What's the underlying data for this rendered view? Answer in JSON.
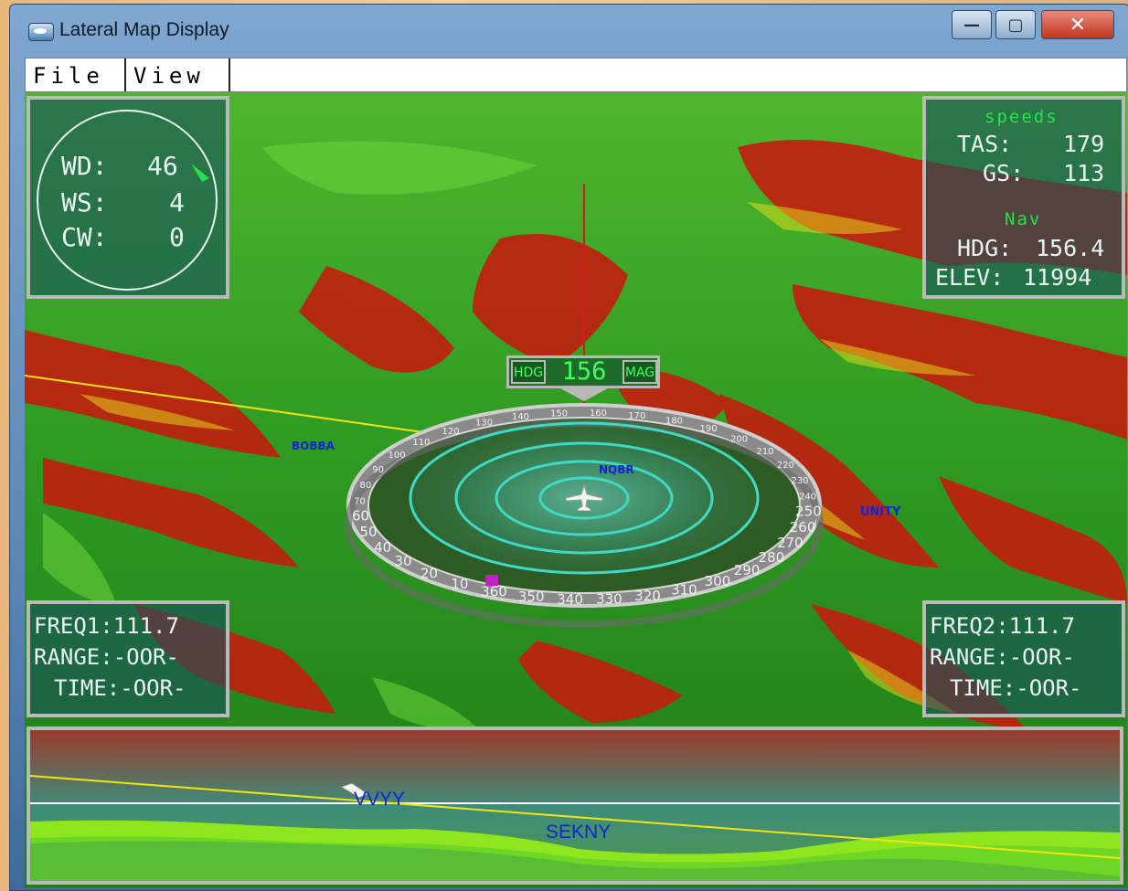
{
  "window": {
    "title": "Lateral Map Display",
    "controls": {
      "minimize": "—",
      "maximize": "▢",
      "close": "✕"
    }
  },
  "menu": {
    "file": "File",
    "view": "View"
  },
  "wind_panel": {
    "wd_label": "WD:",
    "wd_value": "46",
    "ws_label": "WS:",
    "ws_value": "4",
    "cw_label": "CW:",
    "cw_value": "0"
  },
  "speeds_panel": {
    "header": "speeds",
    "tas_label": "TAS:",
    "tas_value": "179",
    "gs_label": "GS:",
    "gs_value": "113",
    "nav_header": "Nav",
    "hdg_label": "HDG:",
    "hdg_value": "156.4",
    "elev_label": "ELEV:",
    "elev_value": "11994"
  },
  "heading_box": {
    "left": "HDG",
    "value": "156",
    "right": "MAG"
  },
  "compass": {
    "ticks": [
      "360",
      "10",
      "20",
      "30",
      "40",
      "50",
      "60",
      "70",
      "80",
      "90",
      "100",
      "110",
      "120",
      "130",
      "140",
      "150",
      "160",
      "170",
      "180",
      "190",
      "200",
      "210",
      "220",
      "230",
      "240",
      "250",
      "260",
      "270",
      "280",
      "290",
      "300",
      "310",
      "320",
      "330",
      "340",
      "350"
    ]
  },
  "freq1_panel": {
    "freq": "FREQ1:111.7",
    "range": "RANGE:-OOR-",
    "time": "TIME:-OOR-"
  },
  "freq2_panel": {
    "freq": "FREQ2:111.7",
    "range": "RANGE:-OOR-",
    "time": "TIME:-OOR-"
  },
  "map_labels": {
    "bobba": "BOBBA",
    "nqbr": "NQBR",
    "unity": "UNITY"
  },
  "profile": {
    "waypoint1": "VVYY",
    "waypoint2": "SEKNY"
  },
  "colors": {
    "terrain_green": "#2c8a1e",
    "terrain_red": "#c21d0e",
    "ring": "#3fd9c5",
    "flight_path": "#f2e40f",
    "label_blue": "#1024d8"
  }
}
